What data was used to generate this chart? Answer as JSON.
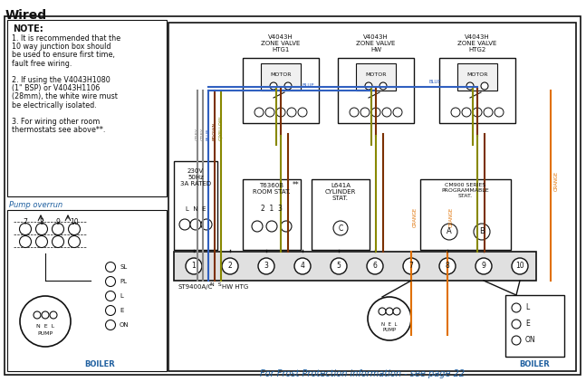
{
  "title": "Wired",
  "bg_color": "#ffffff",
  "note_header": "NOTE:",
  "note_lines": [
    "1. It is recommended that the",
    "10 way junction box should",
    "be used to ensure first time,",
    "fault free wiring.",
    "",
    "2. If using the V4043H1080",
    "(1\" BSP) or V4043H1106",
    "(28mm), the white wire must",
    "be electrically isolated.",
    "",
    "3. For wiring other room",
    "thermostats see above**."
  ],
  "pump_overrun_label": "Pump overrun",
  "valve1_label": "V4043H\nZONE VALVE\nHTG1",
  "valve2_label": "V4043H\nZONE VALVE\nHW",
  "valve3_label": "V4043H\nZONE VALVE\nHTG2",
  "frost_text": "For Frost Protection information - see page 22",
  "mains_label": "230V\n50Hz\n3A RATED",
  "lne_label": "L  N  E",
  "room_stat_label": "T6360B\nROOM STAT.",
  "room_stat_nums": "2  1  3",
  "cyl_stat_label": "L641A\nCYLINDER\nSTAT.",
  "cm900_label": "CM900 SERIES\nPROGRAMMABLE\nSTAT.",
  "st9400_label": "ST9400A/C",
  "hw_htg_label": "HW HTG",
  "boiler_label": "BOILER",
  "pump_label": "PUMP",
  "motor_label": "MOTOR",
  "c_grey": "#888888",
  "c_blue": "#3060c0",
  "c_brown": "#7b3000",
  "c_gyellow": "#888800",
  "c_yellow": "#c8a000",
  "c_orange": "#e07000",
  "c_black": "#111111",
  "c_blue_text": "#2060a0"
}
